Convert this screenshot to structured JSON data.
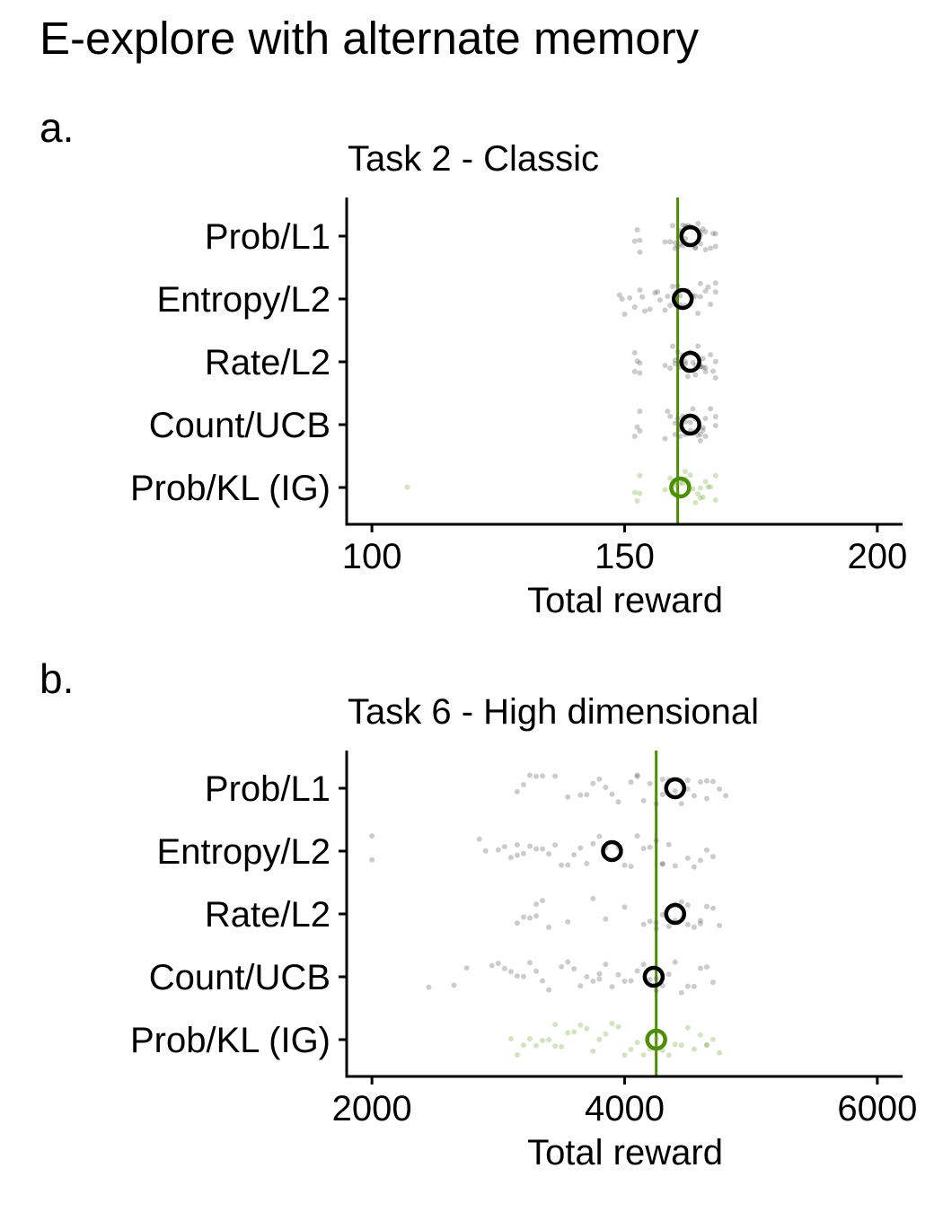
{
  "figure": {
    "title": "E-explore with alternate memory"
  },
  "chart_data": [
    {
      "panel_label": "a.",
      "type": "scatter",
      "title": "Task 2 - Classic",
      "xlabel": "Total reward",
      "ylabel": "",
      "categories": [
        "Prob/L1",
        "Entropy/L2",
        "Rate/L2",
        "Count/UCB",
        "Prob/KL (IG)"
      ],
      "xlim": [
        95,
        205
      ],
      "xticks": [
        100,
        150,
        200
      ],
      "reference_line": 160.5,
      "grid": false,
      "colors": {
        "default": "#000000",
        "highlight": "#4d8f00"
      },
      "highlight_category": "Prob/KL (IG)",
      "series": [
        {
          "name": "Prob/L1",
          "mean": 163,
          "points": [
            152,
            152.5,
            153,
            153,
            158,
            159,
            159.5,
            160,
            160,
            160.5,
            161,
            161,
            161.5,
            162,
            162,
            163,
            163,
            163.5,
            164,
            164,
            164.5,
            165,
            165,
            165,
            165.5,
            166,
            166,
            167,
            167.5,
            168,
            168,
            162.5,
            161.5,
            164.5
          ]
        },
        {
          "name": "Entropy/L2",
          "mean": 161.5,
          "points": [
            149,
            149.5,
            150,
            151,
            152,
            153,
            153.5,
            154,
            155,
            156,
            157,
            158,
            159,
            159.5,
            160,
            160.5,
            161,
            161,
            162,
            162.5,
            163,
            163.5,
            164,
            164.5,
            165,
            165,
            166,
            166.5,
            167,
            168,
            168,
            156.5,
            158.5
          ]
        },
        {
          "name": "Rate/L2",
          "mean": 163,
          "points": [
            152,
            152,
            152.5,
            153,
            153,
            158,
            159,
            159.5,
            160,
            160,
            161,
            161,
            161.5,
            162,
            162.5,
            163,
            163.5,
            164,
            164,
            164.5,
            165,
            165,
            165.5,
            166,
            166,
            167,
            167.5,
            168,
            168,
            160.5,
            162,
            165.5
          ]
        },
        {
          "name": "Count/UCB",
          "mean": 163,
          "points": [
            152,
            152.5,
            153,
            153,
            158,
            158.5,
            159,
            160,
            160,
            160.5,
            161,
            161.5,
            162,
            162,
            163,
            163.5,
            164,
            164,
            164.5,
            165,
            165,
            165.5,
            166,
            166,
            167,
            168,
            168,
            161,
            163,
            165.5
          ]
        },
        {
          "name": "Prob/KL (IG)",
          "mean": 161,
          "points": [
            107,
            152,
            152.5,
            153,
            153,
            158,
            159,
            159.5,
            160,
            160,
            160.5,
            161,
            161.5,
            162,
            162.5,
            163,
            163.5,
            164,
            164.5,
            165,
            165,
            165.5,
            166,
            166.5,
            167,
            168,
            168,
            160,
            162
          ]
        }
      ]
    },
    {
      "panel_label": "b.",
      "type": "scatter",
      "title": "Task 6 - High dimensional",
      "xlabel": "Total reward",
      "ylabel": "",
      "categories": [
        "Prob/L1",
        "Entropy/L2",
        "Rate/L2",
        "Count/UCB",
        "Prob/KL (IG)"
      ],
      "xlim": [
        1800,
        6200
      ],
      "xticks": [
        2000,
        4000,
        6000
      ],
      "reference_line": 4250,
      "grid": false,
      "colors": {
        "default": "#000000",
        "highlight": "#4d8f00"
      },
      "highlight_category": "Prob/KL (IG)",
      "series": [
        {
          "name": "Prob/L1",
          "mean": 4400,
          "points": [
            3150,
            3200,
            3250,
            3300,
            3350,
            3450,
            3550,
            3650,
            3700,
            3750,
            3800,
            3850,
            3950,
            4050,
            4100,
            4150,
            4200,
            4250,
            4300,
            4350,
            4400,
            4450,
            4500,
            4550,
            4600,
            4650,
            4700,
            4750,
            4800,
            4500,
            4300,
            3900,
            4650,
            4100
          ]
        },
        {
          "name": "Entropy/L2",
          "mean": 3900,
          "points": [
            2000,
            2000,
            2850,
            2900,
            3000,
            3050,
            3100,
            3150,
            3200,
            3250,
            3300,
            3350,
            3400,
            3450,
            3500,
            3550,
            3600,
            3650,
            3700,
            3750,
            3800,
            3850,
            3950,
            4000,
            4050,
            4100,
            4150,
            4200,
            4250,
            4300,
            4350,
            4400,
            4500,
            4550,
            4600,
            4650,
            4700,
            4300,
            3150
          ]
        },
        {
          "name": "Rate/L2",
          "mean": 4400,
          "points": [
            3150,
            3200,
            3250,
            3300,
            3350,
            3400,
            3550,
            3750,
            3850,
            4000,
            4150,
            4200,
            4250,
            4300,
            4350,
            4400,
            4450,
            4500,
            4550,
            4600,
            4650,
            4700,
            4750,
            4250,
            4400,
            4600,
            3300,
            4500
          ]
        },
        {
          "name": "Count/UCB",
          "mean": 4230,
          "points": [
            2450,
            2650,
            2750,
            2950,
            3000,
            3050,
            3100,
            3150,
            3200,
            3250,
            3300,
            3350,
            3400,
            3500,
            3550,
            3600,
            3650,
            3700,
            3750,
            3800,
            3850,
            3900,
            3950,
            4000,
            4050,
            4100,
            4150,
            4200,
            4250,
            4300,
            4350,
            4400,
            4450,
            4500,
            4550,
            4600,
            4650,
            4700,
            4250,
            3800
          ]
        },
        {
          "name": "Prob/KL (IG)",
          "mean": 4250,
          "points": [
            3100,
            3150,
            3200,
            3250,
            3300,
            3350,
            3400,
            3450,
            3500,
            3550,
            3600,
            3650,
            3700,
            3750,
            3800,
            3850,
            3900,
            3950,
            4000,
            4050,
            4100,
            4150,
            4200,
            4250,
            4300,
            4350,
            4400,
            4450,
            4500,
            4550,
            4600,
            4650,
            4700,
            4750,
            4250,
            3450,
            4650
          ]
        }
      ]
    }
  ]
}
